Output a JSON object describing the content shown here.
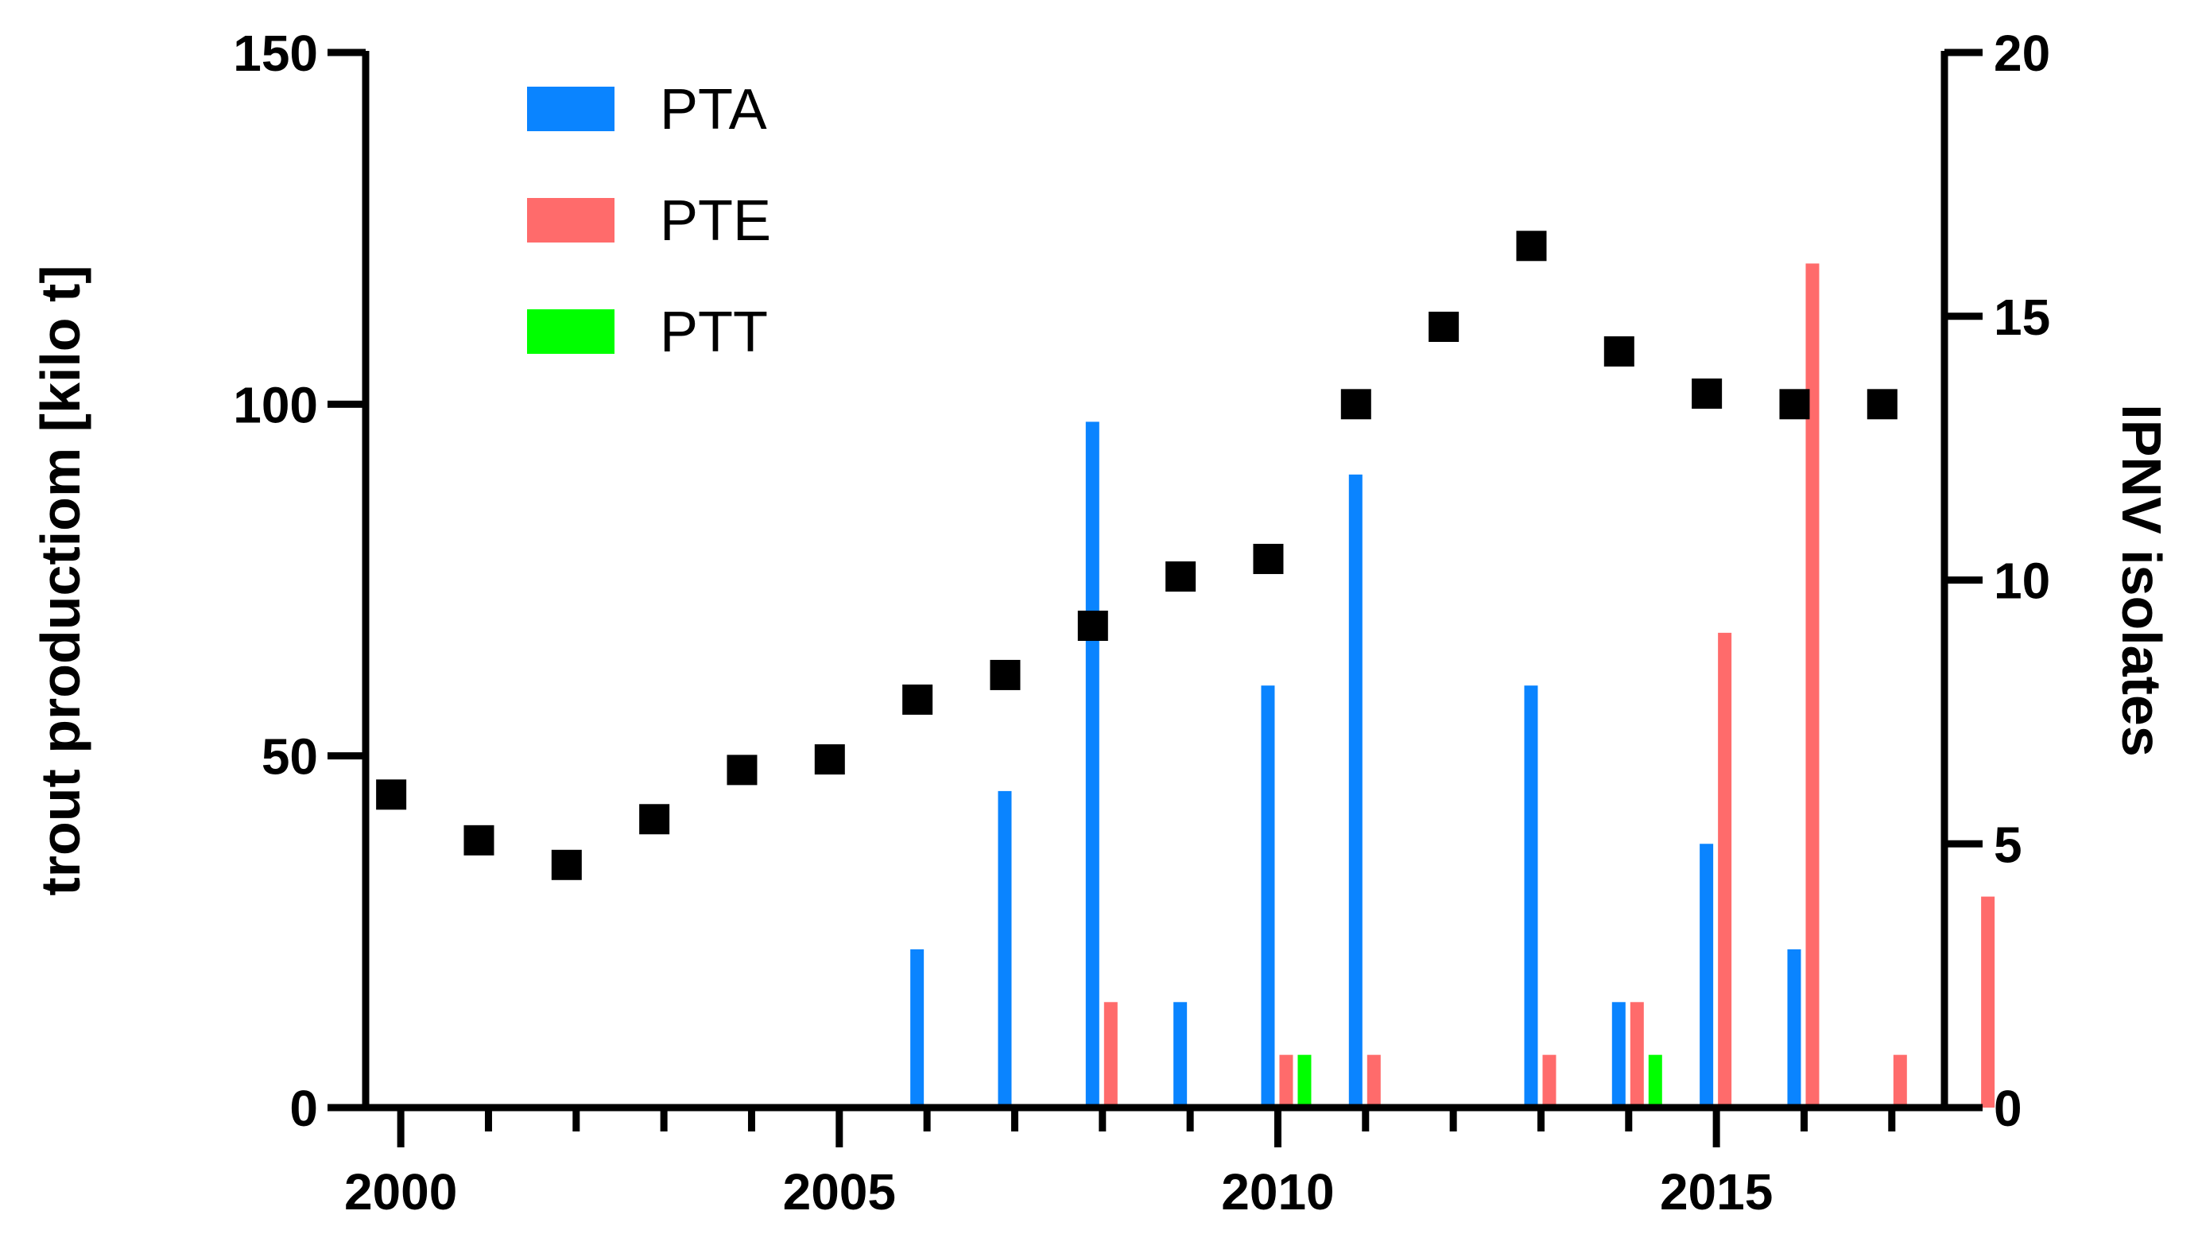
{
  "chart_data": {
    "type": "bar",
    "title": "",
    "ylabel": "trout productiom [kilo t]",
    "y2label": "IPNV isolates",
    "xlim": [
      1999.6,
      2017.6
    ],
    "ylim": [
      0,
      150
    ],
    "y2lim": [
      0,
      20
    ],
    "x_ticks": [
      2000,
      2005,
      2010,
      2015
    ],
    "y_ticks": [
      0,
      50,
      100,
      150
    ],
    "y2_ticks": [
      0,
      5,
      10,
      15,
      20
    ],
    "legend_position": "top-left",
    "grid": false,
    "production": {
      "name": "trout production",
      "marker": "square",
      "x": [
        2000,
        2001,
        2002,
        2003,
        2004,
        2005,
        2006,
        2007,
        2008,
        2009,
        2010,
        2011,
        2012,
        2013,
        2014,
        2015,
        2016,
        2017
      ],
      "values": [
        44.5,
        38,
        34.5,
        41,
        48,
        49.5,
        58,
        61.5,
        68.5,
        75.5,
        78,
        100,
        111,
        122.5,
        107.5,
        101.5,
        100,
        100
      ]
    },
    "series": [
      {
        "name": "PTA",
        "color": "#0A84FF",
        "values": [
          0,
          0,
          0,
          0,
          0,
          0,
          3,
          6,
          13,
          2,
          8,
          12,
          0,
          8,
          2,
          5,
          3,
          0,
          0
        ]
      },
      {
        "name": "PTE",
        "color": "#FF6B6B",
        "values": [
          0,
          0,
          0,
          0,
          0,
          0,
          0,
          0,
          2,
          0,
          1,
          1,
          0,
          1,
          2,
          9,
          16,
          1,
          4
        ]
      },
      {
        "name": "PTT",
        "color": "#00FF00",
        "values": [
          0,
          0,
          0,
          0,
          0,
          0,
          0,
          0,
          0,
          0,
          1,
          0,
          0,
          0,
          1,
          0,
          0,
          0,
          0
        ]
      }
    ],
    "bar_groups_x": [
      2000,
      2001,
      2002,
      2003,
      2004,
      2005,
      2006,
      2007,
      2008,
      2009,
      2010,
      2011,
      2012,
      2013,
      2014,
      2015,
      2016,
      2017,
      2018
    ]
  }
}
